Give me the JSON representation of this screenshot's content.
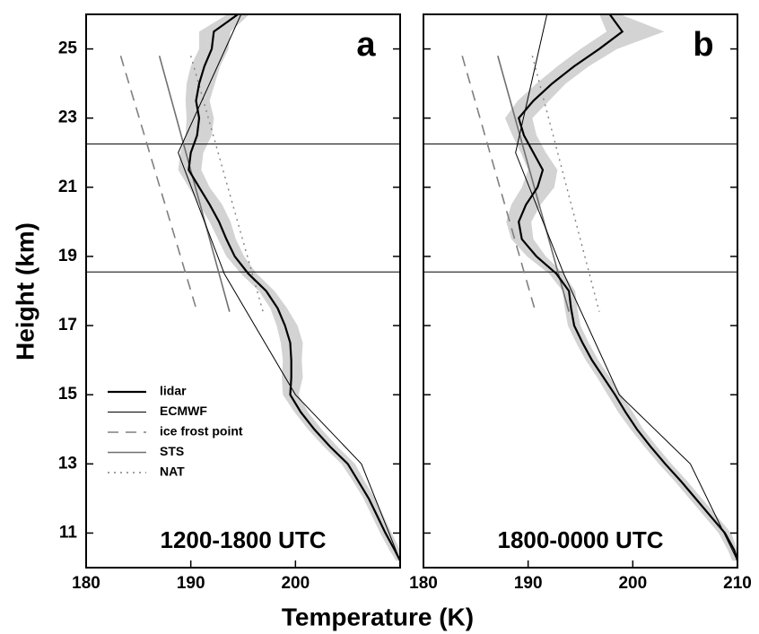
{
  "figure": {
    "xlabel": "Temperature (K)",
    "ylabel": "Height (km)"
  },
  "chart_data": [
    {
      "type": "line",
      "panel_label": "a",
      "annotation": "1200-1800 UTC",
      "xlim": [
        180,
        210
      ],
      "ylim": [
        10,
        26
      ],
      "xticks": [
        180,
        190,
        200
      ],
      "yticks": [
        11,
        13,
        15,
        17,
        19,
        21,
        23,
        25
      ],
      "hlines": [
        22.25,
        18.55
      ],
      "legend": "lower left",
      "series": [
        {
          "name": "lidar",
          "color": "#000000",
          "width": 2.2,
          "dash": "none",
          "y": [
            26,
            25.5,
            25,
            24.5,
            24,
            23.5,
            23,
            22.5,
            22,
            21.5,
            21,
            20.5,
            20,
            19.5,
            19,
            18.5,
            18,
            17.5,
            17,
            16.5,
            16,
            15.5,
            15,
            14.5,
            14,
            13.5,
            13,
            12.5,
            12,
            11.5,
            11,
            10.5,
            10.2
          ],
          "x": [
            194.5,
            192.2,
            192.0,
            191.3,
            190.8,
            190.5,
            190.8,
            190.6,
            190.0,
            189.8,
            190.8,
            191.8,
            192.7,
            193.4,
            194.2,
            195.5,
            197.2,
            198.3,
            199.0,
            199.5,
            199.6,
            199.6,
            199.5,
            200.5,
            201.8,
            203.3,
            205.0,
            206.0,
            207.0,
            207.8,
            208.6,
            209.5,
            210.0
          ],
          "x_low": [
            193.5,
            190.8,
            190.8,
            190.0,
            189.6,
            189.5,
            189.6,
            189.5,
            189.0,
            188.8,
            189.8,
            190.8,
            191.8,
            192.6,
            193.4,
            194.8,
            196.5,
            197.6,
            198.2,
            198.6,
            198.8,
            198.7,
            198.8,
            199.9,
            201.2,
            202.7,
            204.4,
            205.5,
            206.5,
            207.3,
            208.1,
            209.0,
            209.6
          ],
          "x_high": [
            195.6,
            193.8,
            193.6,
            192.8,
            192.3,
            191.8,
            192.2,
            192.0,
            191.2,
            191.0,
            191.8,
            193.0,
            193.8,
            194.3,
            195.1,
            196.3,
            198.0,
            199.2,
            200.2,
            200.7,
            200.6,
            200.7,
            200.3,
            201.2,
            202.5,
            204.0,
            205.7,
            206.6,
            207.6,
            208.4,
            209.2,
            210.0,
            210.0
          ],
          "band_color": "#d3d3d3"
        },
        {
          "name": "ECMWF",
          "color": "#000000",
          "width": 1,
          "dash": "none",
          "y": [
            26,
            22,
            18.5,
            15,
            13,
            10.2
          ],
          "x": [
            194.8,
            188.8,
            193.2,
            200.0,
            206.3,
            210.0
          ]
        },
        {
          "name": "ice frost point",
          "color": "#808080",
          "width": 1.6,
          "dash": "12,8",
          "y": [
            24.8,
            17.4
          ],
          "x": [
            183.3,
            190.6
          ]
        },
        {
          "name": "STS",
          "color": "#707070",
          "width": 1.6,
          "dash": "none",
          "y": [
            24.8,
            17.4
          ],
          "x": [
            187.0,
            193.7
          ]
        },
        {
          "name": "NAT",
          "color": "#808080",
          "width": 1.4,
          "dash": "2,5",
          "y": [
            24.8,
            17.4
          ],
          "x": [
            190.0,
            196.9
          ]
        }
      ]
    },
    {
      "type": "line",
      "panel_label": "b",
      "annotation": "1800-0000 UTC",
      "xlim": [
        180,
        210
      ],
      "ylim": [
        10,
        26
      ],
      "xticks": [
        180,
        190,
        200,
        210
      ],
      "hlines": [
        22.25,
        18.55
      ],
      "series": [
        {
          "name": "lidar",
          "color": "#000000",
          "width": 2.2,
          "dash": "none",
          "y": [
            26,
            25.5,
            25,
            24.5,
            24,
            23.5,
            23,
            22.5,
            22,
            21.5,
            21,
            20.5,
            20,
            19.5,
            19,
            18.5,
            18,
            17.5,
            17,
            16.5,
            16,
            15.5,
            15,
            14.5,
            14,
            13.5,
            13,
            12.5,
            12,
            11.5,
            11,
            10.5,
            10.2
          ],
          "x": [
            197.8,
            199.0,
            196.8,
            194.4,
            192.3,
            190.5,
            189.1,
            189.6,
            190.5,
            191.4,
            190.9,
            189.8,
            189.1,
            189.4,
            190.8,
            192.7,
            193.9,
            194.1,
            194.4,
            195.2,
            196.1,
            197.2,
            198.3,
            199.3,
            200.4,
            201.7,
            203.1,
            204.6,
            206.0,
            207.4,
            208.8,
            209.7,
            210.0
          ],
          "x_low": [
            196.8,
            197.5,
            195.0,
            192.8,
            190.8,
            189.0,
            187.8,
            188.5,
            189.3,
            190.0,
            189.4,
            188.4,
            187.9,
            188.4,
            189.9,
            192.0,
            193.3,
            193.5,
            193.8,
            194.6,
            195.5,
            196.6,
            197.6,
            198.6,
            199.8,
            201.1,
            202.5,
            204.0,
            205.4,
            206.8,
            208.2,
            209.1,
            209.5
          ],
          "x_high": [
            198.8,
            203.0,
            198.5,
            195.8,
            193.6,
            192.0,
            190.4,
            190.8,
            191.7,
            192.8,
            192.5,
            191.2,
            190.3,
            190.5,
            191.7,
            193.4,
            194.5,
            194.7,
            195.0,
            195.8,
            196.7,
            197.8,
            198.9,
            200.0,
            201.0,
            202.3,
            203.7,
            205.2,
            206.6,
            208.0,
            209.4,
            210.0,
            210.0
          ],
          "band_color": "#d3d3d3"
        },
        {
          "name": "ECMWF",
          "color": "#000000",
          "width": 1,
          "dash": "none",
          "y": [
            26,
            22,
            18.5,
            15,
            13,
            10.2
          ],
          "x": [
            191.8,
            188.8,
            193.4,
            198.7,
            205.5,
            210.0
          ]
        },
        {
          "name": "ice frost point",
          "color": "#808080",
          "width": 1.6,
          "dash": "12,8",
          "y": [
            24.8,
            17.4
          ],
          "x": [
            183.7,
            190.7
          ]
        },
        {
          "name": "STS",
          "color": "#707070",
          "width": 1.6,
          "dash": "none",
          "y": [
            24.8,
            17.4
          ],
          "x": [
            187.1,
            193.9
          ]
        },
        {
          "name": "NAT",
          "color": "#808080",
          "width": 1.4,
          "dash": "2,5",
          "y": [
            24.8,
            17.4
          ],
          "x": [
            190.4,
            196.8
          ]
        }
      ]
    }
  ]
}
